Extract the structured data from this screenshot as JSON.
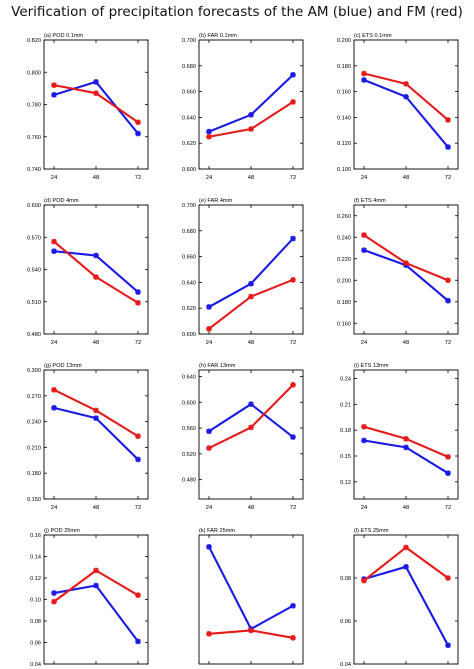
{
  "title": "Verification of precipitation forecasts of the AM (blue) and FM (red)",
  "colors": {
    "AM": "#1a1ae6",
    "FM": "#e61a1a",
    "axis": "#000000"
  },
  "chart_data": [
    {
      "type": "line",
      "title": "(a) POD 0.1mm",
      "x": [
        24,
        48,
        72
      ],
      "xticks": [
        "24",
        "48",
        "72"
      ],
      "ylim": [
        0.74,
        0.82
      ],
      "yticks": [
        "0.740",
        "0.760",
        "0.780",
        "0.800",
        "0.820"
      ],
      "series": [
        {
          "values": [
            0.786,
            0.794,
            0.762
          ]
        },
        {
          "values": [
            0.792,
            0.787,
            0.769
          ]
        }
      ]
    },
    {
      "type": "line",
      "title": "(b) FAR 0.1mm",
      "x": [
        24,
        48,
        72
      ],
      "xticks": [
        "24",
        "48",
        "72"
      ],
      "ylim": [
        0.6,
        0.7
      ],
      "yticks": [
        "0.600",
        "0.620",
        "0.640",
        "0.660",
        "0.680",
        "0.700"
      ],
      "series": [
        {
          "values": [
            0.629,
            0.642,
            0.673
          ]
        },
        {
          "values": [
            0.625,
            0.631,
            0.652
          ]
        }
      ]
    },
    {
      "type": "line",
      "title": "(c) ETS 0.1mm",
      "x": [
        24,
        48,
        72
      ],
      "xticks": [
        "24",
        "48",
        "72"
      ],
      "ylim": [
        0.1,
        0.2
      ],
      "yticks": [
        "0.100",
        "0.120",
        "0.140",
        "0.160",
        "0.180",
        "0.200"
      ],
      "series": [
        {
          "values": [
            0.169,
            0.156,
            0.117
          ]
        },
        {
          "values": [
            0.174,
            0.166,
            0.138
          ]
        }
      ]
    },
    {
      "type": "line",
      "title": "(d) POD 4mm",
      "x": [
        24,
        48,
        72
      ],
      "xticks": [
        "24",
        "48",
        "72"
      ],
      "ylim": [
        0.48,
        0.6
      ],
      "yticks": [
        "0.480",
        "0.510",
        "0.540",
        "0.570",
        "0.600"
      ],
      "series": [
        {
          "values": [
            0.557,
            0.553,
            0.519
          ]
        },
        {
          "values": [
            0.566,
            0.533,
            0.509
          ]
        }
      ]
    },
    {
      "type": "line",
      "title": "(e) FAR 4mm",
      "x": [
        24,
        48,
        72
      ],
      "xticks": [
        "24",
        "48",
        "72"
      ],
      "ylim": [
        0.6,
        0.7
      ],
      "yticks": [
        "0.600",
        "0.620",
        "0.640",
        "0.660",
        "0.680",
        "0.700"
      ],
      "series": [
        {
          "values": [
            0.621,
            0.639,
            0.674
          ]
        },
        {
          "values": [
            0.604,
            0.629,
            0.642
          ]
        }
      ]
    },
    {
      "type": "line",
      "title": "(f) ETS 4mm",
      "x": [
        24,
        48,
        72
      ],
      "xticks": [
        "24",
        "48",
        "72"
      ],
      "ylim": [
        0.15,
        0.27
      ],
      "yticks": [
        "0.160",
        "0.180",
        "0.200",
        "0.220",
        "0.240",
        "0.260"
      ],
      "series": [
        {
          "values": [
            0.228,
            0.214,
            0.181
          ]
        },
        {
          "values": [
            0.242,
            0.216,
            0.2
          ]
        }
      ]
    },
    {
      "type": "line",
      "title": "(g) POD 13mm",
      "x": [
        24,
        48,
        72
      ],
      "xticks": [
        "24",
        "48",
        "72"
      ],
      "ylim": [
        0.15,
        0.3
      ],
      "yticks": [
        "0.150",
        "0.180",
        "0.210",
        "0.240",
        "0.270",
        "0.300"
      ],
      "series": [
        {
          "values": [
            0.256,
            0.244,
            0.196
          ]
        },
        {
          "values": [
            0.277,
            0.253,
            0.223
          ]
        }
      ]
    },
    {
      "type": "line",
      "title": "(h) FAR 13mm",
      "x": [
        24,
        48,
        72
      ],
      "xticks": [
        "24",
        "48",
        "72"
      ],
      "ylim": [
        0.45,
        0.65
      ],
      "yticks": [
        "0.480",
        "0.520",
        "0.560",
        "0.600",
        "0.640"
      ],
      "series": [
        {
          "values": [
            0.555,
            0.597,
            0.546
          ]
        },
        {
          "values": [
            0.529,
            0.561,
            0.627
          ]
        }
      ]
    },
    {
      "type": "line",
      "title": "(i) ETS 13mm",
      "x": [
        24,
        48,
        72
      ],
      "xticks": [
        "24",
        "48",
        "72"
      ],
      "ylim": [
        0.1,
        0.25
      ],
      "yticks": [
        "0.12",
        "0.15",
        "0.18",
        "0.21",
        "0.24"
      ],
      "series": [
        {
          "values": [
            0.168,
            0.16,
            0.13
          ]
        },
        {
          "values": [
            0.184,
            0.17,
            0.149
          ]
        }
      ]
    },
    {
      "type": "line",
      "title": "(j) POD 25mm",
      "x": [
        24,
        48,
        72
      ],
      "xticks": [
        "24",
        "48",
        "72"
      ],
      "ylim": [
        0.04,
        0.16
      ],
      "yticks": [
        "0.04",
        "0.06",
        "0.08",
        "0.10",
        "0.12",
        "0.14",
        "0.16"
      ],
      "series": [
        {
          "values": [
            0.106,
            0.113,
            0.061
          ]
        },
        {
          "values": [
            0.098,
            0.127,
            0.104
          ]
        }
      ]
    },
    {
      "type": "line",
      "title": "(k) FAR 25mm",
      "x": [
        24,
        48,
        72
      ],
      "xticks": [
        "24",
        "48",
        "72"
      ],
      "ylim": [
        0.35,
        0.7
      ],
      "yticks": [],
      "series": [
        {
          "values": [
            0.668,
            0.445,
            0.508
          ]
        },
        {
          "values": [
            0.432,
            0.441,
            0.421
          ]
        }
      ]
    },
    {
      "type": "line",
      "title": "(l) ETS 25mm",
      "x": [
        24,
        48,
        72
      ],
      "xticks": [
        "24",
        "48",
        "72"
      ],
      "ylim": [
        0.04,
        0.1
      ],
      "yticks": [
        "0.04",
        "0.06",
        "0.08"
      ],
      "series": [
        {
          "values": [
            0.0795,
            0.0852,
            0.0487
          ]
        },
        {
          "values": [
            0.0788,
            0.0942,
            0.08
          ]
        }
      ]
    }
  ]
}
